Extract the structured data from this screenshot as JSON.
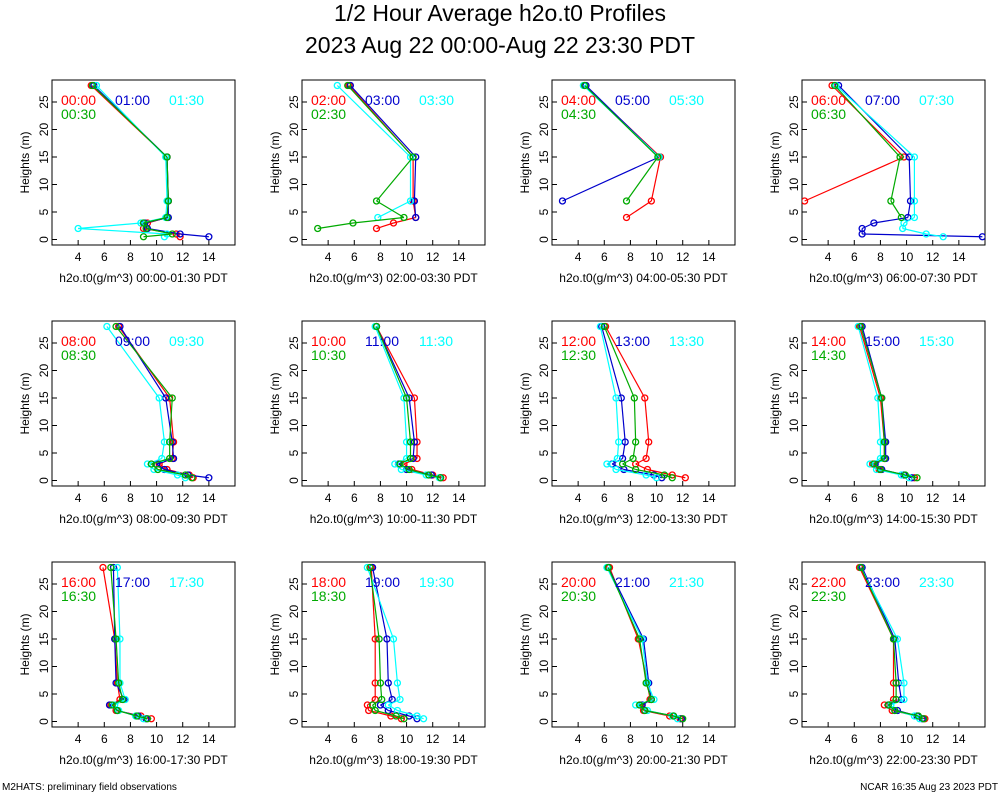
{
  "title": "1/2 Hour Average h2o.t0 Profiles",
  "subtitle": "2023 Aug 22 00:00-Aug 22 23:30 PDT",
  "footer_left": "M2HATS: preliminary field observations",
  "footer_right": "NCAR 16:35 Aug 23 2023 PDT",
  "series_colors": [
    "#ff0000",
    "#0000cc",
    "#00ffff",
    "#00aa00"
  ],
  "chart_data": [
    {
      "type": "line",
      "ylabel": "Heights (m)",
      "xlabel": "h2o.t0(g/m^3) 00:00-01:30 PDT",
      "xlim": [
        2,
        16
      ],
      "ylim": [
        -1,
        29
      ],
      "x_ticks": [
        4,
        6,
        8,
        10,
        12,
        14
      ],
      "y_ticks": [
        0,
        5,
        10,
        15,
        20,
        25
      ],
      "heights": [
        28,
        15,
        7,
        4,
        3,
        2,
        1,
        0.5
      ],
      "series": [
        {
          "name": "00:00",
          "x": [
            5.0,
            10.8,
            10.9,
            10.8,
            9.3,
            9.0,
            11.5,
            11.8
          ]
        },
        {
          "name": "01:00",
          "x": [
            5.2,
            10.8,
            10.9,
            10.9,
            9.1,
            9.3,
            11.8,
            14.0
          ]
        },
        {
          "name": "01:30",
          "x": [
            5.4,
            10.7,
            10.8,
            10.7,
            8.8,
            4.0,
            10.8,
            10.6
          ]
        },
        {
          "name": "00:30",
          "x": [
            5.1,
            10.8,
            10.9,
            10.8,
            9.0,
            9.2,
            11.2,
            9.0
          ]
        }
      ]
    },
    {
      "type": "line",
      "ylabel": "Heights (m)",
      "xlabel": "h2o.t0(g/m^3) 02:00-03:30 PDT",
      "xlim": [
        2,
        16
      ],
      "ylim": [
        -1,
        29
      ],
      "x_ticks": [
        4,
        6,
        8,
        10,
        12,
        14
      ],
      "y_ticks": [
        0,
        5,
        10,
        15,
        20,
        25
      ],
      "heights": [
        28,
        15,
        7,
        4,
        3,
        2
      ],
      "series": [
        {
          "name": "02:00",
          "x": [
            5.6,
            10.5,
            10.5,
            10.7,
            9.0,
            7.7
          ]
        },
        {
          "name": "03:00",
          "x": [
            5.7,
            10.7,
            10.6,
            10.7,
            null,
            null
          ]
        },
        {
          "name": "03:30",
          "x": [
            4.7,
            10.3,
            10.3,
            7.8,
            null,
            null
          ]
        },
        {
          "name": "02:30",
          "x": [
            5.5,
            10.5,
            7.7,
            9.8,
            5.9,
            3.2
          ]
        }
      ]
    },
    {
      "type": "line",
      "ylabel": "Heights (m)",
      "xlabel": "h2o.t0(g/m^3) 04:00-05:30 PDT",
      "xlim": [
        2,
        16
      ],
      "ylim": [
        -1,
        29
      ],
      "x_ticks": [
        4,
        6,
        8,
        10,
        12,
        14
      ],
      "y_ticks": [
        0,
        5,
        10,
        15,
        20,
        25
      ],
      "heights": [
        28,
        15,
        7,
        4
      ],
      "series": [
        {
          "name": "04:00",
          "x": [
            4.5,
            10.3,
            9.6,
            7.7
          ]
        },
        {
          "name": "05:00",
          "x": [
            4.6,
            10.2,
            2.8,
            null
          ]
        },
        {
          "name": "05:30",
          "x": [
            4.4,
            10.2,
            null,
            null
          ]
        },
        {
          "name": "04:30",
          "x": [
            4.5,
            10.1,
            7.7,
            null
          ]
        }
      ]
    },
    {
      "type": "line",
      "ylabel": "Heights (m)",
      "xlabel": "h2o.t0(g/m^3) 06:00-07:30 PDT",
      "xlim": [
        2,
        16
      ],
      "ylim": [
        -1,
        29
      ],
      "x_ticks": [
        4,
        6,
        8,
        10,
        12,
        14
      ],
      "y_ticks": [
        0,
        5,
        10,
        15,
        20,
        25
      ],
      "heights": [
        28,
        15,
        7,
        4,
        3,
        2,
        1,
        0.5
      ],
      "series": [
        {
          "name": "06:00",
          "x": [
            4.3,
            9.8,
            2.2,
            null,
            null,
            null,
            null,
            null
          ]
        },
        {
          "name": "07:00",
          "x": [
            4.8,
            10.2,
            10.3,
            10.1,
            7.5,
            6.6,
            6.6,
            15.8
          ]
        },
        {
          "name": "07:30",
          "x": [
            4.6,
            10.6,
            10.6,
            10.6,
            9.8,
            9.7,
            11.5,
            12.8
          ]
        },
        {
          "name": "06:30",
          "x": [
            4.5,
            9.5,
            8.8,
            9.6,
            null,
            null,
            null,
            null
          ]
        }
      ]
    },
    {
      "type": "line",
      "ylabel": "Heights (m)",
      "xlabel": "h2o.t0(g/m^3) 08:00-09:30 PDT",
      "xlim": [
        2,
        16
      ],
      "ylim": [
        -1,
        29
      ],
      "x_ticks": [
        4,
        6,
        8,
        10,
        12,
        14
      ],
      "y_ticks": [
        0,
        5,
        10,
        15,
        20,
        25
      ],
      "heights": [
        28,
        15,
        7,
        4,
        3,
        2,
        1,
        0.5
      ],
      "series": [
        {
          "name": "08:00",
          "x": [
            7.1,
            11.0,
            11.3,
            11.2,
            10.2,
            10.8,
            12.5,
            12.8
          ]
        },
        {
          "name": "09:00",
          "x": [
            7.2,
            10.7,
            11.2,
            11.3,
            10.0,
            10.6,
            12.4,
            14.0
          ]
        },
        {
          "name": "09:30",
          "x": [
            6.2,
            10.2,
            10.6,
            10.4,
            9.3,
            9.8,
            11.6,
            12.2
          ]
        },
        {
          "name": "08:30",
          "x": [
            6.9,
            11.2,
            11.0,
            11.0,
            9.6,
            10.1,
            12.2,
            12.7
          ]
        }
      ]
    },
    {
      "type": "line",
      "ylabel": "Heights (m)",
      "xlabel": "h2o.t0(g/m^3) 10:00-11:30 PDT",
      "xlim": [
        2,
        16
      ],
      "ylim": [
        -1,
        29
      ],
      "x_ticks": [
        4,
        6,
        8,
        10,
        12,
        14
      ],
      "y_ticks": [
        0,
        5,
        10,
        15,
        20,
        25
      ],
      "heights": [
        28,
        15,
        7,
        4,
        3,
        2,
        1,
        0.5
      ],
      "series": [
        {
          "name": "10:00",
          "x": [
            7.7,
            10.6,
            10.8,
            10.8,
            9.8,
            10.4,
            12.0,
            12.8
          ]
        },
        {
          "name": "11:00",
          "x": [
            7.7,
            10.2,
            10.6,
            10.5,
            9.4,
            10.0,
            11.9,
            12.6
          ]
        },
        {
          "name": "11:30",
          "x": [
            7.6,
            9.8,
            10.0,
            10.0,
            9.1,
            9.6,
            11.5,
            12.5
          ]
        },
        {
          "name": "10:30",
          "x": [
            7.7,
            10.0,
            10.3,
            10.3,
            9.5,
            10.2,
            11.7,
            12.6
          ]
        }
      ]
    },
    {
      "type": "line",
      "ylabel": "Heights (m)",
      "xlabel": "h2o.t0(g/m^3) 12:00-13:30 PDT",
      "xlim": [
        2,
        16
      ],
      "ylim": [
        -1,
        29
      ],
      "x_ticks": [
        4,
        6,
        8,
        10,
        12,
        14
      ],
      "y_ticks": [
        0,
        5,
        10,
        15,
        20,
        25
      ],
      "heights": [
        28,
        15,
        7,
        4,
        3,
        2,
        1,
        0.5
      ],
      "series": [
        {
          "name": "12:00",
          "x": [
            6.1,
            9.1,
            9.4,
            9.2,
            8.4,
            9.3,
            11.2,
            12.2
          ]
        },
        {
          "name": "13:00",
          "x": [
            5.8,
            7.3,
            7.6,
            7.4,
            6.6,
            7.5,
            9.8,
            10.4
          ]
        },
        {
          "name": "13:30",
          "x": [
            5.7,
            6.9,
            7.1,
            7.0,
            6.2,
            6.9,
            9.2,
            10.0
          ]
        },
        {
          "name": "12:30",
          "x": [
            6.0,
            8.3,
            8.4,
            8.2,
            7.4,
            8.4,
            10.6,
            11.2
          ]
        }
      ]
    },
    {
      "type": "line",
      "ylabel": "Heights (m)",
      "xlabel": "h2o.t0(g/m^3) 14:00-15:30 PDT",
      "xlim": [
        2,
        16
      ],
      "ylim": [
        -1,
        29
      ],
      "x_ticks": [
        4,
        6,
        8,
        10,
        12,
        14
      ],
      "y_ticks": [
        0,
        5,
        10,
        15,
        20,
        25
      ],
      "heights": [
        28,
        15,
        7,
        4,
        3,
        2,
        1,
        0.5
      ],
      "series": [
        {
          "name": "14:00",
          "x": [
            6.4,
            8.0,
            8.3,
            8.3,
            7.4,
            7.9,
            9.8,
            10.6
          ]
        },
        {
          "name": "15:00",
          "x": [
            6.6,
            8.1,
            8.4,
            8.4,
            7.6,
            8.1,
            9.8,
            10.4
          ]
        },
        {
          "name": "15:30",
          "x": [
            6.3,
            7.8,
            8.0,
            8.0,
            7.2,
            7.7,
            9.6,
            10.2
          ]
        },
        {
          "name": "14:30",
          "x": [
            6.5,
            8.1,
            8.3,
            8.3,
            7.5,
            8.0,
            9.9,
            10.8
          ]
        }
      ]
    },
    {
      "type": "line",
      "ylabel": "Heights (m)",
      "xlabel": "h2o.t0(g/m^3) 16:00-17:30 PDT",
      "xlim": [
        2,
        16
      ],
      "ylim": [
        -1,
        29
      ],
      "x_ticks": [
        4,
        6,
        8,
        10,
        12,
        14
      ],
      "y_ticks": [
        0,
        5,
        10,
        15,
        20,
        25
      ],
      "heights": [
        28,
        15,
        7,
        4,
        3,
        2,
        1,
        0.5
      ],
      "series": [
        {
          "name": "16:00",
          "x": [
            5.9,
            6.8,
            7.0,
            7.2,
            6.5,
            6.9,
            8.8,
            9.6
          ]
        },
        {
          "name": "17:00",
          "x": [
            6.7,
            6.8,
            6.9,
            7.5,
            6.4,
            7.0,
            8.6,
            9.2
          ]
        },
        {
          "name": "17:30",
          "x": [
            7.0,
            7.2,
            7.2,
            7.6,
            6.8,
            7.1,
            8.4,
            9.0
          ]
        },
        {
          "name": "16:30",
          "x": [
            6.5,
            6.9,
            7.1,
            7.4,
            6.6,
            7.0,
            8.5,
            9.3
          ]
        }
      ]
    },
    {
      "type": "line",
      "ylabel": "Heights (m)",
      "xlabel": "h2o.t0(g/m^3) 18:00-19:30 PDT",
      "xlim": [
        2,
        16
      ],
      "ylim": [
        -1,
        29
      ],
      "x_ticks": [
        4,
        6,
        8,
        10,
        12,
        14
      ],
      "y_ticks": [
        0,
        5,
        10,
        15,
        20,
        25
      ],
      "heights": [
        28,
        15,
        7,
        4,
        3,
        2,
        1,
        0.5
      ],
      "series": [
        {
          "name": "18:00",
          "x": [
            7.3,
            7.6,
            7.6,
            7.6,
            7.0,
            7.1,
            8.8,
            9.6
          ]
        },
        {
          "name": "19:00",
          "x": [
            7.4,
            8.5,
            8.6,
            8.9,
            8.0,
            8.6,
            10.2,
            10.8
          ]
        },
        {
          "name": "19:30",
          "x": [
            7.0,
            9.0,
            9.3,
            9.5,
            8.6,
            9.3,
            10.8,
            11.3
          ]
        },
        {
          "name": "18:30",
          "x": [
            7.2,
            7.9,
            8.0,
            8.1,
            7.4,
            7.6,
            9.2,
            9.8
          ]
        }
      ]
    },
    {
      "type": "line",
      "ylabel": "Heights (m)",
      "xlabel": "h2o.t0(g/m^3) 20:00-21:30 PDT",
      "xlim": [
        2,
        16
      ],
      "ylim": [
        -1,
        29
      ],
      "x_ticks": [
        4,
        6,
        8,
        10,
        12,
        14
      ],
      "y_ticks": [
        0,
        5,
        10,
        15,
        20,
        25
      ],
      "heights": [
        28,
        15,
        7,
        4,
        3,
        2,
        1,
        0.5
      ],
      "series": [
        {
          "name": "20:00",
          "x": [
            6.4,
            8.6,
            9.3,
            9.5,
            8.8,
            9.0,
            11.0,
            11.8
          ]
        },
        {
          "name": "21:00",
          "x": [
            6.3,
            9.0,
            9.4,
            9.6,
            8.9,
            9.1,
            11.3,
            11.9
          ]
        },
        {
          "name": "21:30",
          "x": [
            6.2,
            8.9,
            9.3,
            9.8,
            8.4,
            9.3,
            11.2,
            11.6
          ]
        },
        {
          "name": "20:30",
          "x": [
            6.3,
            8.7,
            9.2,
            9.6,
            8.7,
            9.1,
            11.3,
            12.0
          ]
        }
      ]
    },
    {
      "type": "line",
      "ylabel": "Heights (m)",
      "xlabel": "h2o.t0(g/m^3) 22:00-23:30 PDT",
      "xlim": [
        2,
        16
      ],
      "ylim": [
        -1,
        29
      ],
      "x_ticks": [
        4,
        6,
        8,
        10,
        12,
        14
      ],
      "y_ticks": [
        0,
        5,
        10,
        15,
        20,
        25
      ],
      "heights": [
        28,
        15,
        7,
        4,
        3,
        2,
        1,
        0.5
      ],
      "series": [
        {
          "name": "22:00",
          "x": [
            6.4,
            9.0,
            9.0,
            9.0,
            8.3,
            8.9,
            10.8,
            11.4
          ]
        },
        {
          "name": "23:00",
          "x": [
            6.6,
            9.1,
            9.4,
            9.6,
            8.6,
            9.3,
            10.8,
            11.2
          ]
        },
        {
          "name": "23:30",
          "x": [
            6.5,
            9.3,
            9.8,
            9.8,
            8.8,
            9.1,
            10.6,
            11.0
          ]
        },
        {
          "name": "22:30",
          "x": [
            6.5,
            9.0,
            9.2,
            9.2,
            8.6,
            9.1,
            10.9,
            11.3
          ]
        }
      ]
    }
  ]
}
